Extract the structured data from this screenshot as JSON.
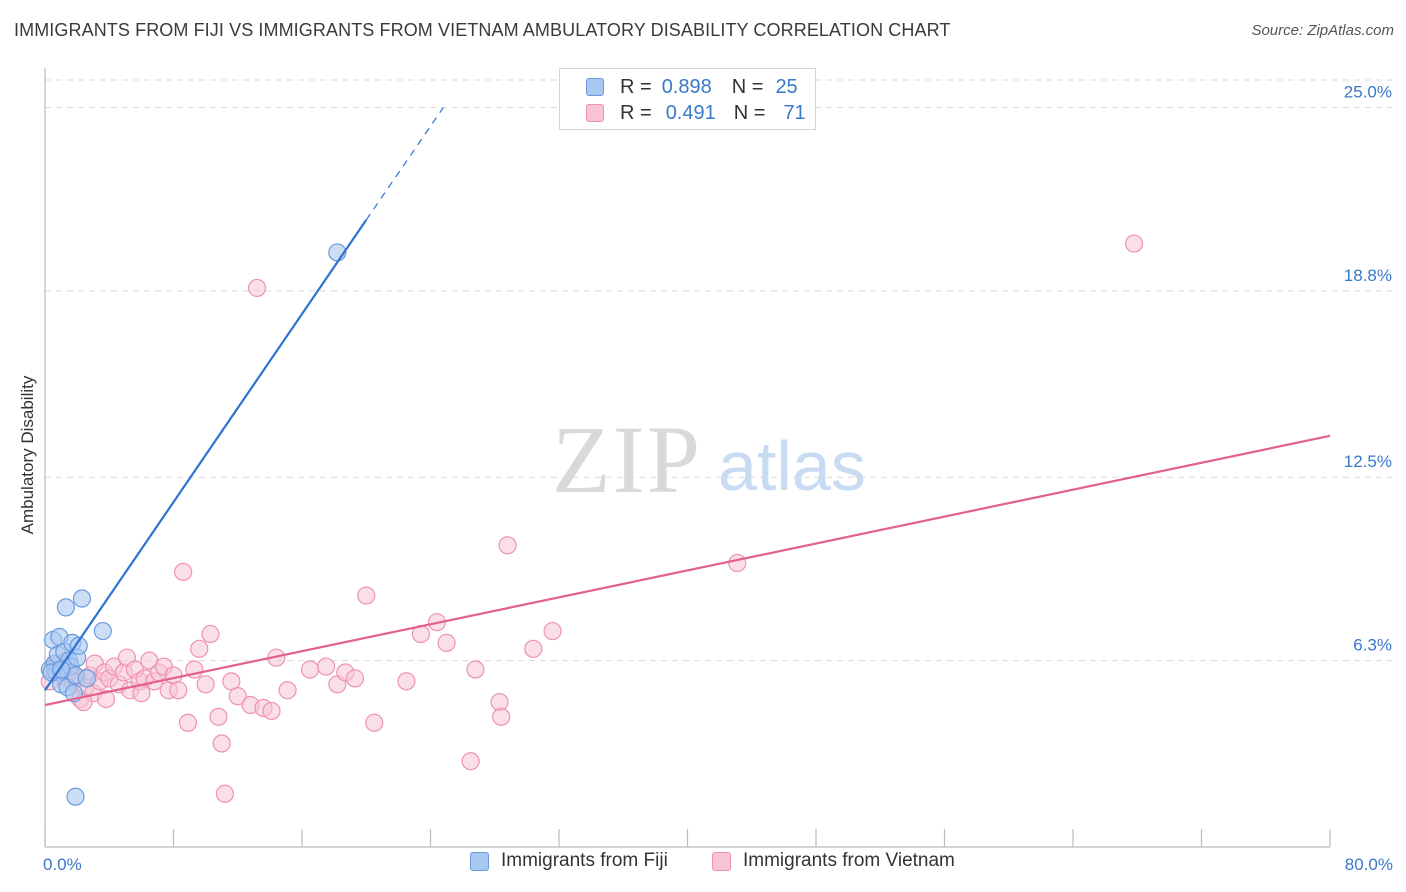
{
  "title": "IMMIGRANTS FROM FIJI VS IMMIGRANTS FROM VIETNAM AMBULATORY DISABILITY CORRELATION CHART",
  "source": "Source: ZipAtlas.com",
  "watermark": {
    "zip": "ZIP",
    "atlas": "atlas"
  },
  "legend_top": {
    "rows": [
      {
        "r_label": "R =",
        "r_value": "0.898",
        "n_label": "N =",
        "n_value": "25"
      },
      {
        "r_label": "R =",
        "r_value": "0.491",
        "n_label": "N =",
        "n_value": "71"
      }
    ]
  },
  "legend_bottom": [
    "Immigrants from Fiji",
    "Immigrants from Vietnam"
  ],
  "colors": {
    "fiji_fill": "#a9c8f0",
    "fiji_stroke": "#6a9be0",
    "fiji_line": "#2f72d0",
    "vietnam_fill": "#f8c4d4",
    "vietnam_stroke": "#ee93b0",
    "vietnam_line": "#e2608e",
    "tick_label": "#3a78c9",
    "grid": "#d9d9d9"
  },
  "chart_data": {
    "type": "scatter",
    "title": "IMMIGRANTS FROM FIJI VS IMMIGRANTS FROM VIETNAM AMBULATORY DISABILITY CORRELATION CHART",
    "xlabel": "",
    "ylabel": "Ambulatory Disability",
    "xlim": [
      0,
      80
    ],
    "ylim": [
      0,
      26.2
    ],
    "x_tick_labels": [
      {
        "value": 0,
        "label": "0.0%"
      },
      {
        "value": 80,
        "label": "80.0%"
      }
    ],
    "y_ticks": [
      {
        "value": 6.3,
        "label": "6.3%"
      },
      {
        "value": 12.5,
        "label": "12.5%"
      },
      {
        "value": 18.8,
        "label": "18.8%"
      },
      {
        "value": 25.0,
        "label": "25.0%"
      }
    ],
    "grid": "horizontal dashed",
    "legend_position": "top-center",
    "series": [
      {
        "name": "Immigrants from Fiji",
        "R": 0.898,
        "N": 25,
        "trend": {
          "x1": 0.0,
          "y1": 5.3,
          "x2": 20.0,
          "y2": 21.2,
          "dashed_to_x": 24.8,
          "dashed_to_y": 25.0
        },
        "points": [
          [
            0.3,
            6.0
          ],
          [
            0.5,
            7.0
          ],
          [
            0.6,
            6.2
          ],
          [
            0.7,
            5.9
          ],
          [
            0.8,
            6.5
          ],
          [
            0.9,
            7.1
          ],
          [
            1.0,
            5.5
          ],
          [
            1.1,
            6.0
          ],
          [
            1.2,
            6.6
          ],
          [
            1.3,
            8.1
          ],
          [
            1.4,
            5.4
          ],
          [
            1.5,
            6.3
          ],
          [
            1.6,
            6.1
          ],
          [
            1.7,
            6.9
          ],
          [
            1.8,
            5.2
          ],
          [
            1.9,
            5.8
          ],
          [
            2.0,
            6.4
          ],
          [
            2.1,
            6.8
          ],
          [
            2.3,
            8.4
          ],
          [
            2.6,
            5.7
          ],
          [
            3.6,
            7.3
          ],
          [
            0.4,
            5.9
          ],
          [
            1.0,
            6.0
          ],
          [
            1.9,
            1.7
          ],
          [
            18.2,
            20.1
          ]
        ]
      },
      {
        "name": "Immigrants from Vietnam",
        "R": 0.491,
        "N": 71,
        "trend": {
          "x1": 0.0,
          "y1": 4.8,
          "x2": 80.0,
          "y2": 13.9
        },
        "points": [
          [
            0.5,
            6.1
          ],
          [
            1.0,
            5.8
          ],
          [
            1.3,
            6.3
          ],
          [
            1.7,
            5.6
          ],
          [
            2.0,
            5.7
          ],
          [
            2.2,
            5.0
          ],
          [
            2.5,
            5.4
          ],
          [
            2.8,
            5.8
          ],
          [
            3.0,
            5.2
          ],
          [
            3.1,
            6.2
          ],
          [
            3.4,
            5.6
          ],
          [
            3.7,
            5.9
          ],
          [
            4.0,
            5.7
          ],
          [
            4.3,
            6.1
          ],
          [
            4.6,
            5.5
          ],
          [
            4.9,
            5.9
          ],
          [
            5.1,
            6.4
          ],
          [
            5.3,
            5.3
          ],
          [
            5.6,
            6.0
          ],
          [
            5.9,
            5.6
          ],
          [
            6.2,
            5.7
          ],
          [
            6.5,
            6.3
          ],
          [
            6.8,
            5.6
          ],
          [
            7.1,
            5.9
          ],
          [
            7.4,
            6.1
          ],
          [
            7.7,
            5.3
          ],
          [
            8.0,
            5.8
          ],
          [
            8.3,
            5.3
          ],
          [
            8.6,
            9.3
          ],
          [
            8.9,
            4.2
          ],
          [
            9.3,
            6.0
          ],
          [
            9.6,
            6.7
          ],
          [
            10.0,
            5.5
          ],
          [
            10.3,
            7.2
          ],
          [
            10.8,
            4.4
          ],
          [
            11.0,
            3.5
          ],
          [
            11.2,
            1.8
          ],
          [
            11.6,
            5.6
          ],
          [
            12.0,
            5.1
          ],
          [
            12.8,
            4.8
          ],
          [
            13.2,
            18.9
          ],
          [
            13.6,
            4.7
          ],
          [
            14.1,
            4.6
          ],
          [
            14.4,
            6.4
          ],
          [
            15.1,
            5.3
          ],
          [
            16.5,
            6.0
          ],
          [
            17.5,
            6.1
          ],
          [
            18.2,
            5.5
          ],
          [
            18.7,
            5.9
          ],
          [
            19.3,
            5.7
          ],
          [
            20.0,
            8.5
          ],
          [
            20.5,
            4.2
          ],
          [
            22.5,
            5.6
          ],
          [
            23.4,
            7.2
          ],
          [
            24.4,
            7.6
          ],
          [
            25.0,
            6.9
          ],
          [
            26.5,
            2.9
          ],
          [
            26.8,
            6.0
          ],
          [
            28.3,
            4.9
          ],
          [
            28.4,
            4.4
          ],
          [
            28.8,
            10.2
          ],
          [
            30.4,
            6.7
          ],
          [
            31.6,
            7.3
          ],
          [
            43.1,
            9.6
          ],
          [
            67.8,
            20.4
          ],
          [
            0.3,
            5.6
          ],
          [
            0.8,
            6.2
          ],
          [
            1.5,
            5.9
          ],
          [
            2.4,
            4.9
          ],
          [
            3.8,
            5.0
          ],
          [
            6.0,
            5.2
          ]
        ]
      }
    ]
  }
}
